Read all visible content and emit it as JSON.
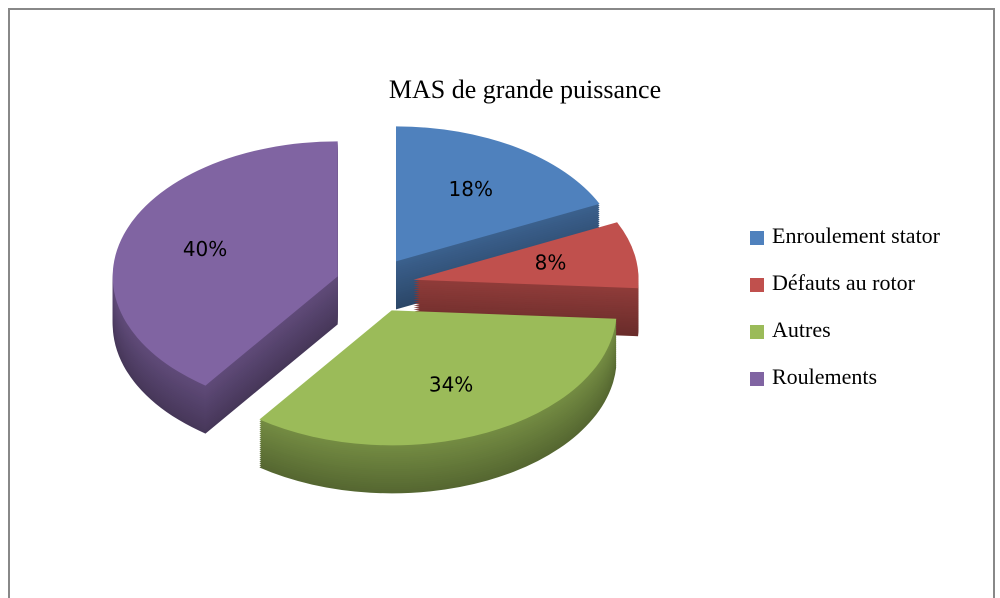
{
  "chart_data": {
    "type": "pie",
    "title": "MAS de grande puissance",
    "categories": [
      "Enroulement stator",
      "Défauts au rotor",
      "Autres",
      "Roulements"
    ],
    "values": [
      18,
      8,
      34,
      40
    ],
    "value_labels": [
      "18%",
      "8%",
      "34%",
      "40%"
    ],
    "colors": [
      "#4f81bd",
      "#c0504d",
      "#9bbb59",
      "#8064a2"
    ],
    "legend": "right"
  }
}
